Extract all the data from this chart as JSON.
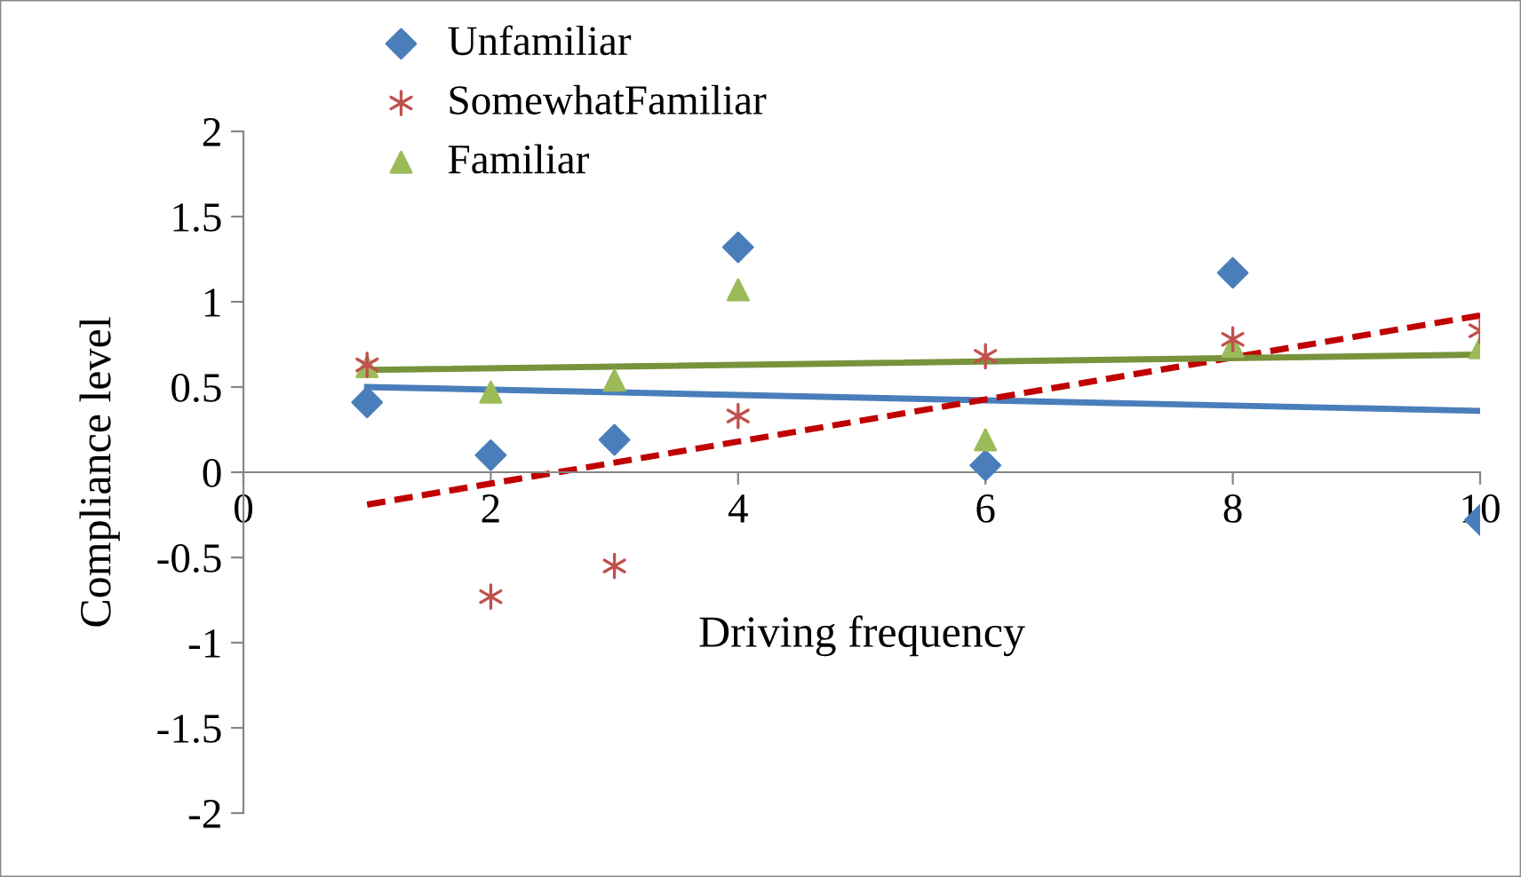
{
  "chart_data": {
    "type": "scatter",
    "xlabel": "Driving frequency",
    "ylabel": "Compliance level",
    "xlim": [
      0,
      10
    ],
    "ylim": [
      -2,
      2
    ],
    "xticks": [
      0,
      2,
      4,
      6,
      8,
      10
    ],
    "yticks": [
      -2,
      -1.5,
      -1,
      -0.5,
      0,
      0.5,
      1,
      1.5,
      2
    ],
    "legend": "top left",
    "grid": false,
    "series": [
      {
        "name": "Unfamiliar",
        "color": "#4a7ebb",
        "marker": "diamond",
        "x": [
          1,
          2,
          3,
          4,
          6,
          8,
          10
        ],
        "values": [
          0.41,
          0.1,
          0.19,
          1.32,
          0.04,
          1.17,
          -0.28
        ]
      },
      {
        "name": "SomewhatFamiliar",
        "color": "#c0504d",
        "marker": "cross",
        "x": [
          1,
          2,
          3,
          4,
          6,
          8,
          10
        ],
        "values": [
          0.63,
          -0.73,
          -0.55,
          0.33,
          0.68,
          0.78,
          0.83
        ]
      },
      {
        "name": "Familiar",
        "color": "#9bbb59",
        "marker": "triangle",
        "x": [
          1,
          2,
          3,
          4,
          6,
          8,
          10
        ],
        "values": [
          0.62,
          0.47,
          0.54,
          1.07,
          0.19,
          0.74,
          0.73
        ]
      },
      {
        "type": "line",
        "color": "#4a7ebb",
        "line_style": "solid",
        "marker": "none",
        "x": [
          1,
          10
        ],
        "values": [
          0.5,
          0.36
        ]
      },
      {
        "type": "line",
        "color": "#c00000",
        "line_style": "dashed",
        "marker": "none",
        "x": [
          1,
          10
        ],
        "values": [
          -0.19,
          0.92
        ]
      },
      {
        "type": "line",
        "color": "#77933c",
        "line_style": "solid",
        "marker": "none",
        "x": [
          1,
          10
        ],
        "values": [
          0.6,
          0.69
        ]
      }
    ]
  }
}
